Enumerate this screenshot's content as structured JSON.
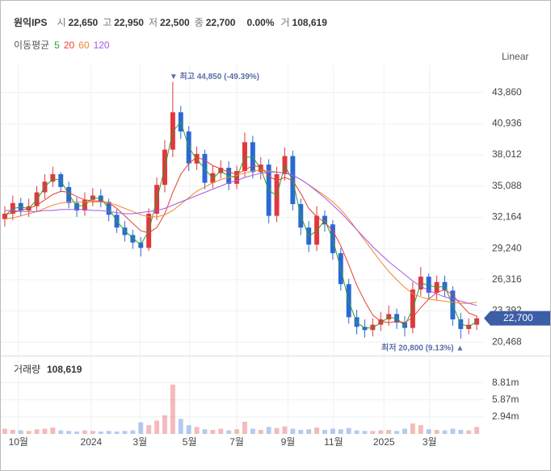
{
  "chart_data": {
    "type": "candlestick",
    "header": {
      "name": "원익IPS",
      "items": [
        [
          "시",
          "22,650"
        ],
        [
          "고",
          "22,950"
        ],
        [
          "저",
          "22,500"
        ],
        [
          "종",
          "22,700"
        ]
      ],
      "change": "0.00%",
      "volume_key": "거",
      "volume_val": "108,619"
    },
    "legend_title": "이동평균",
    "scale_label": "Linear",
    "up_color": "#e0383e",
    "down_color": "#2b68d6",
    "ylim": [
      19200,
      46400
    ],
    "yticks": [
      {
        "value": 43860,
        "label": "43,860"
      },
      {
        "value": 40936,
        "label": "40,936"
      },
      {
        "value": 38012,
        "label": "38,012"
      },
      {
        "value": 35088,
        "label": "35,088"
      },
      {
        "value": 32164,
        "label": "32,164"
      },
      {
        "value": 29240,
        "label": "29,240"
      },
      {
        "value": 26316,
        "label": "26,316"
      },
      {
        "value": 23392,
        "label": "23,392"
      },
      {
        "value": 20468,
        "label": "20,468"
      }
    ],
    "xlim": [
      -0.5,
      59.9
    ],
    "xticks": [
      {
        "value": 1.7,
        "label": "10월"
      },
      {
        "value": 10.8,
        "label": "2024"
      },
      {
        "value": 16.9,
        "label": "3월"
      },
      {
        "value": 23.1,
        "label": "5월"
      },
      {
        "value": 29,
        "label": "7월"
      },
      {
        "value": 35.4,
        "label": "9월"
      },
      {
        "value": 41.1,
        "label": "11월"
      },
      {
        "value": 47.4,
        "label": "2025"
      },
      {
        "value": 53.1,
        "label": "3월"
      }
    ],
    "open": [
      32000,
      32500,
      33500,
      32800,
      33200,
      34500,
      35500,
      36200,
      35000,
      33500,
      32800,
      33800,
      34200,
      33600,
      32400,
      31200,
      30500,
      29800,
      29300,
      32500,
      35200,
      38500,
      42000,
      40200,
      37200,
      38100,
      35400,
      36300,
      36800,
      35300,
      36500,
      39200,
      36400,
      37100,
      32300,
      36200,
      37900,
      33400,
      31200,
      29600,
      32300,
      31500,
      28800,
      25900,
      22800,
      21900,
      21600,
      22100,
      22600,
      23100,
      22300,
      21800,
      25400,
      26600,
      25100,
      26100,
      25300,
      22600,
      21700,
      22100
    ],
    "close": [
      32500,
      33500,
      32800,
      33200,
      34500,
      35500,
      36200,
      35000,
      33500,
      32800,
      33800,
      34200,
      33600,
      32400,
      31200,
      30500,
      29800,
      29300,
      32500,
      35200,
      38500,
      42000,
      40200,
      37200,
      38100,
      35400,
      36300,
      36800,
      35300,
      36500,
      39200,
      36400,
      37100,
      32300,
      36200,
      37900,
      33400,
      31200,
      29600,
      32300,
      31500,
      28800,
      25900,
      22800,
      21900,
      21600,
      22100,
      22600,
      23100,
      22300,
      21800,
      25400,
      26600,
      25100,
      26100,
      25300,
      22600,
      21700,
      22100,
      22700
    ],
    "high": [
      33200,
      34200,
      34000,
      33900,
      35100,
      36200,
      36900,
      36400,
      35500,
      34000,
      34500,
      34900,
      34800,
      33900,
      32900,
      31800,
      31000,
      30300,
      33000,
      35900,
      39400,
      44850,
      42600,
      40700,
      38800,
      38500,
      37000,
      37500,
      37400,
      37000,
      40100,
      39800,
      37800,
      37600,
      36900,
      38700,
      38400,
      33900,
      31800,
      33200,
      32800,
      31900,
      29300,
      26400,
      23500,
      22600,
      22700,
      23300,
      23900,
      23600,
      22900,
      26100,
      27500,
      26900,
      26700,
      26700,
      25700,
      23200,
      22700,
      22950
    ],
    "low": [
      31300,
      31900,
      32300,
      32200,
      32700,
      33900,
      35000,
      34500,
      33000,
      32200,
      32300,
      33200,
      33100,
      31800,
      30700,
      29900,
      29200,
      28500,
      29000,
      31900,
      34500,
      37800,
      39500,
      36500,
      36600,
      34800,
      34900,
      35800,
      34700,
      34800,
      35900,
      35800,
      35700,
      31600,
      31700,
      35600,
      32800,
      30500,
      28900,
      29000,
      30800,
      28200,
      25300,
      22200,
      21200,
      20900,
      21000,
      21500,
      22000,
      21700,
      21000,
      21300,
      24800,
      24500,
      24400,
      24700,
      22000,
      20800,
      21200,
      21600
    ],
    "volume": [
      900000,
      700000,
      600000,
      500000,
      800000,
      900000,
      1100000,
      600000,
      500000,
      400000,
      600000,
      500000,
      400000,
      500000,
      400000,
      500000,
      600000,
      2000000,
      1500000,
      2300000,
      3200000,
      8500000,
      2600000,
      1500000,
      1200000,
      800000,
      700000,
      900000,
      600000,
      800000,
      2100000,
      900000,
      700000,
      1200000,
      1000000,
      1300000,
      900000,
      700000,
      800000,
      1100000,
      700000,
      900000,
      800000,
      1000000,
      600000,
      500000,
      500000,
      600000,
      700000,
      500000,
      900000,
      1800000,
      1500000,
      800000,
      700000,
      600000,
      900000,
      700000,
      600000,
      1200000
    ],
    "ma_series": [
      {
        "name": "5",
        "color": "#2ca02c",
        "values": [
          32300,
          33000,
          33100,
          33000,
          33800,
          35000,
          35800,
          35600,
          34300,
          33200,
          33300,
          34000,
          33900,
          33000,
          31800,
          30900,
          30200,
          29600,
          30900,
          33800,
          36800,
          40200,
          41100,
          38700,
          37600,
          36700,
          35800,
          36500,
          36000,
          35900,
          37800,
          37800,
          36700,
          34700,
          34200,
          37000,
          35600,
          32300,
          30400,
          30900,
          31900,
          30100,
          27300,
          24300,
          22300,
          21800,
          21800,
          22300,
          22800,
          22700,
          22000,
          23600,
          26000,
          25800,
          25600,
          25700,
          23900,
          22200,
          21900,
          22400
        ]
      },
      {
        "name": "20",
        "color": "#e6402f",
        "values": [
          32400,
          32600,
          32800,
          33000,
          33300,
          33800,
          34300,
          34600,
          34500,
          34100,
          33800,
          33700,
          33700,
          33500,
          33000,
          32300,
          31600,
          30900,
          30700,
          31200,
          32500,
          34500,
          36200,
          37200,
          37800,
          37500,
          37000,
          36700,
          36400,
          36200,
          36600,
          37000,
          36900,
          36000,
          35600,
          35900,
          35600,
          34400,
          33000,
          32200,
          31700,
          30900,
          29500,
          27700,
          25800,
          24300,
          23000,
          22400,
          22300,
          22400,
          22300,
          22800,
          23700,
          24500,
          25100,
          25400,
          24900,
          24000,
          23200,
          22900
        ]
      },
      {
        "name": "60",
        "color": "#f0862e",
        "values": [
          32000,
          32100,
          32300,
          32500,
          32700,
          33000,
          33300,
          33500,
          33600,
          33600,
          33600,
          33600,
          33600,
          33500,
          33300,
          33000,
          32700,
          32400,
          32200,
          32200,
          32400,
          32800,
          33400,
          34000,
          34600,
          35000,
          35400,
          35700,
          35900,
          36100,
          36300,
          36500,
          36600,
          36500,
          36400,
          36300,
          36100,
          35700,
          35200,
          34700,
          34200,
          33600,
          32900,
          32000,
          31000,
          30000,
          29000,
          28000,
          27100,
          26300,
          25600,
          25000,
          24700,
          24500,
          24400,
          24300,
          24200,
          24100,
          24100,
          24200
        ]
      },
      {
        "name": "120",
        "color": "#a35ae6",
        "values": [
          32800,
          32800,
          32700,
          32700,
          32700,
          32800,
          32800,
          32900,
          32900,
          32900,
          32900,
          32800,
          32800,
          32700,
          32600,
          32500,
          32500,
          32600,
          32700,
          32800,
          33000,
          33300,
          33600,
          33900,
          34200,
          34500,
          34800,
          35100,
          35400,
          35600,
          35900,
          36100,
          36300,
          36400,
          36400,
          36300,
          36100,
          35700,
          35200,
          34600,
          34000,
          33300,
          32600,
          31800,
          31000,
          30200,
          29400,
          28700,
          28000,
          27400,
          26800,
          26200,
          25700,
          25300,
          25000,
          24700,
          24500,
          24300,
          24100,
          23900
        ]
      }
    ],
    "high_annotation": {
      "index": 21,
      "text": "▼ 최고 44,850 (-49.39%)"
    },
    "low_annotation": {
      "index": 57,
      "text": "최저 20,800 (9.13%) ▲"
    },
    "current_price": {
      "value": 22700,
      "label": "22,700"
    },
    "volume_title": "거래량",
    "volume_last": "108,619",
    "vlim": [
      0,
      12800000
    ],
    "vticks": [
      {
        "value": 8810000,
        "label": "8.81m"
      },
      {
        "value": 5870000,
        "label": "5.87m"
      },
      {
        "value": 2940000,
        "label": "2.94m"
      }
    ]
  }
}
